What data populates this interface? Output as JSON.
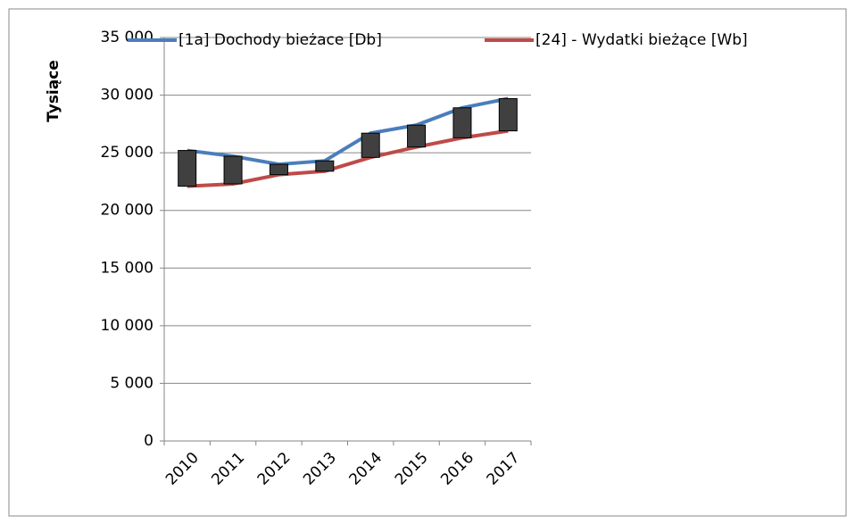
{
  "chart_data": {
    "type": "line",
    "y_label": "Tysiące",
    "categories": [
      "2010",
      "2011",
      "2012",
      "2013",
      "2014",
      "2015",
      "2016",
      "2017"
    ],
    "series": [
      {
        "name": "[1a] Dochody bieżace [Db]",
        "color": "#4a7ebb",
        "values": [
          25200,
          24700,
          24000,
          24300,
          26700,
          27400,
          28900,
          29700
        ]
      },
      {
        "name": "[24] -  Wydatki bieżące  [Wb]",
        "color": "#be4b48",
        "values": [
          22100,
          22300,
          23100,
          23400,
          24600,
          25500,
          26300,
          26900
        ]
      }
    ],
    "up_down_bars": true,
    "bar_color": "#404040",
    "ylim": [
      0,
      35000
    ],
    "yticks": [
      0,
      {
        "value": 5000,
        "label": "5 000"
      },
      {
        "value": 10000,
        "label": "10 000"
      },
      {
        "value": 15000,
        "label": "15 000"
      },
      {
        "value": 20000,
        "label": "20 000"
      },
      {
        "value": 25000,
        "label": "25 000"
      },
      {
        "value": 30000,
        "label": "30 000"
      },
      {
        "value": 35000,
        "label": "35 000"
      }
    ],
    "grid": true,
    "legend": "top"
  }
}
